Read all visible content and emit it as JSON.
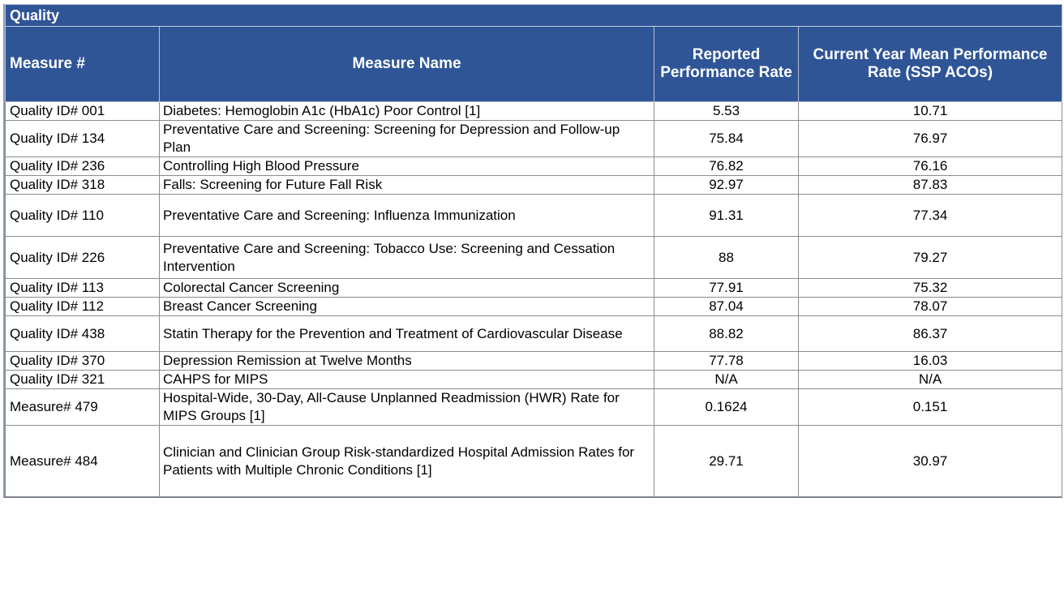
{
  "table": {
    "title": "Quality",
    "headers": {
      "measure_num": "Measure #",
      "measure_name": "Measure Name",
      "reported_rate": "Reported Performance Rate",
      "mean_rate": "Current Year Mean Performance Rate (SSP ACOs)"
    },
    "rows": [
      {
        "id": "Quality ID# 001",
        "name": "Diabetes: Hemoglobin A1c (HbA1c) Poor Control [1]",
        "reported": "5.53",
        "mean": "10.71"
      },
      {
        "id": "Quality ID# 134",
        "name": "Preventative Care and Screening: Screening for Depression and Follow-up Plan",
        "reported": "75.84",
        "mean": "76.97"
      },
      {
        "id": "Quality ID# 236",
        "name": "Controlling High Blood Pressure",
        "reported": "76.82",
        "mean": "76.16"
      },
      {
        "id": "Quality ID# 318",
        "name": "Falls: Screening for Future Fall Risk",
        "reported": "92.97",
        "mean": "87.83"
      },
      {
        "id": "Quality ID# 110",
        "name": "Preventative Care and Screening: Influenza Immunization",
        "reported": "91.31",
        "mean": "77.34"
      },
      {
        "id": "Quality ID# 226",
        "name": "Preventative Care and Screening: Tobacco Use: Screening and Cessation Intervention",
        "reported": "88",
        "mean": "79.27"
      },
      {
        "id": "Quality ID# 113",
        "name": "Colorectal Cancer Screening",
        "reported": "77.91",
        "mean": "75.32"
      },
      {
        "id": "Quality ID# 112",
        "name": "Breast Cancer Screening",
        "reported": "87.04",
        "mean": "78.07"
      },
      {
        "id": "Quality ID# 438",
        "name": "Statin Therapy for the Prevention and Treatment of Cardiovascular Disease",
        "reported": "88.82",
        "mean": "86.37"
      },
      {
        "id": "Quality ID# 370",
        "name": "Depression Remission at Twelve Months",
        "reported": "77.78",
        "mean": "16.03"
      },
      {
        "id": "Quality ID# 321",
        "name": "CAHPS for MIPS",
        "reported": "N/A",
        "mean": "N/A"
      },
      {
        "id": "Measure# 479",
        "name": "Hospital-Wide, 30-Day, All-Cause Unplanned Readmission (HWR) Rate for MIPS Groups [1]",
        "reported": "0.1624",
        "mean": "0.151"
      },
      {
        "id": "Measure# 484",
        "name": "Clinician and Clinician Group Risk-standardized Hospital Admission Rates for Patients with Multiple Chronic Conditions [1]",
        "reported": "29.71",
        "mean": "30.97"
      }
    ]
  }
}
